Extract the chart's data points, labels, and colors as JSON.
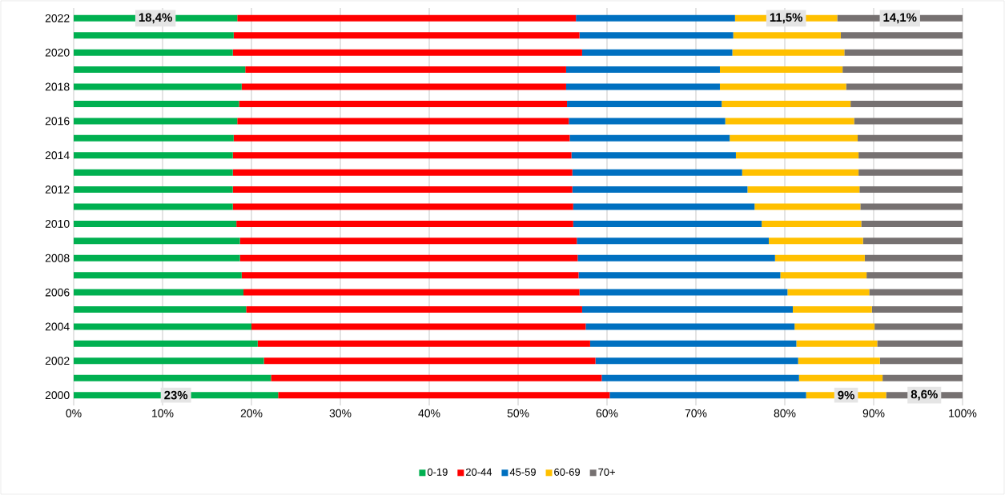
{
  "chart_data": {
    "type": "bar",
    "orientation": "horizontal",
    "stacked": true,
    "categories": [
      "2022",
      null,
      "2020",
      null,
      "2018",
      null,
      "2016",
      null,
      "2014",
      null,
      "2012",
      null,
      "2010",
      null,
      "2008",
      null,
      "2006",
      null,
      "2004",
      null,
      "2002",
      null,
      "2000"
    ],
    "series": [
      {
        "name": "0-19",
        "color": "#00b050",
        "values": [
          18.4,
          18.0,
          17.9,
          19.3,
          18.9,
          18.6,
          18.4,
          18.0,
          17.9,
          17.9,
          17.9,
          17.9,
          18.3,
          18.7,
          18.7,
          18.9,
          19.1,
          19.4,
          20.0,
          20.7,
          21.4,
          22.2,
          23
        ],
        "value_labels": [
          "18,4%",
          null,
          null,
          null,
          null,
          null,
          null,
          null,
          null,
          null,
          null,
          null,
          null,
          null,
          null,
          null,
          null,
          null,
          null,
          null,
          null,
          null,
          "23%"
        ]
      },
      {
        "name": "20-44",
        "color": "#ff0000",
        "values": [
          38.1,
          38.9,
          39.3,
          36.1,
          36.5,
          36.9,
          37.3,
          37.8,
          38.1,
          38.2,
          38.2,
          38.3,
          37.9,
          37.9,
          38.0,
          37.9,
          37.8,
          37.8,
          37.6,
          37.4,
          37.3,
          37.2,
          37.3
        ]
      },
      {
        "name": "45-59",
        "color": "#0070c0",
        "values": [
          17.9,
          17.3,
          16.9,
          17.3,
          17.3,
          17.4,
          17.6,
          18.0,
          18.5,
          19.1,
          19.7,
          20.4,
          21.2,
          21.6,
          22.2,
          22.7,
          23.4,
          23.7,
          23.5,
          23.2,
          22.8,
          22.2,
          22.1
        ]
      },
      {
        "name": "60-69",
        "color": "#ffc000",
        "values": [
          11.5,
          12.1,
          12.6,
          13.8,
          14.2,
          14.5,
          14.5,
          14.4,
          13.8,
          13.1,
          12.6,
          11.9,
          11.2,
          10.6,
          10.1,
          9.7,
          9.2,
          8.9,
          9.0,
          9.1,
          9.2,
          9.4,
          9
        ],
        "value_labels": [
          "11,5%",
          null,
          null,
          null,
          null,
          null,
          null,
          null,
          null,
          null,
          null,
          null,
          null,
          null,
          null,
          null,
          null,
          null,
          null,
          null,
          null,
          null,
          "9%"
        ]
      },
      {
        "name": "70+",
        "color": "#767171",
        "values": [
          14.1,
          13.7,
          13.3,
          13.5,
          13.1,
          12.6,
          12.2,
          11.8,
          11.7,
          11.7,
          11.6,
          11.5,
          11.4,
          11.2,
          11.0,
          10.8,
          10.5,
          10.2,
          9.9,
          9.6,
          9.3,
          9.0,
          8.6
        ],
        "value_labels": [
          "14,1%",
          null,
          null,
          null,
          null,
          null,
          null,
          null,
          null,
          null,
          null,
          null,
          null,
          null,
          null,
          null,
          null,
          null,
          null,
          null,
          null,
          null,
          "8,6%"
        ]
      }
    ],
    "xlim": [
      0,
      100
    ],
    "xticks": [
      {
        "value": 0,
        "label": "0%"
      },
      {
        "value": 10,
        "label": "10%"
      },
      {
        "value": 20,
        "label": "20%"
      },
      {
        "value": 30,
        "label": "30%"
      },
      {
        "value": 40,
        "label": "40%"
      },
      {
        "value": 50,
        "label": "50%"
      },
      {
        "value": 60,
        "label": "60%"
      },
      {
        "value": 70,
        "label": "70%"
      },
      {
        "value": 80,
        "label": "80%"
      },
      {
        "value": 90,
        "label": "90%"
      },
      {
        "value": 100,
        "label": "100%"
      }
    ],
    "grid": "x",
    "legend": "bottom"
  }
}
